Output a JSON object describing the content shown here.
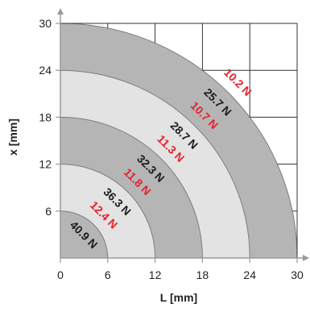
{
  "colors": {
    "dark_ring": "#b5b5b5",
    "light_ring": "#e3e3e3",
    "ring_border": "#7d7d7d",
    "grid": "#333333",
    "black_label": "#1a1a1a",
    "red_label": "#e8202a",
    "axis": "#9a9a9a"
  },
  "chart_data": {
    "type": "polar-region",
    "xlabel": "L [mm]",
    "ylabel": "x [mm]",
    "xlim": [
      0,
      30
    ],
    "ylim": [
      0,
      30
    ],
    "x_ticks": [
      "0",
      "6",
      "12",
      "18",
      "24",
      "30"
    ],
    "y_ticks": [
      "6",
      "12",
      "18",
      "24",
      "30"
    ],
    "grid": true,
    "rings": [
      {
        "inner_radius": 0,
        "outer_radius": 6,
        "shade": "dark",
        "black_value": "",
        "red_value": ""
      },
      {
        "inner_radius": 6,
        "outer_radius": 12,
        "shade": "light",
        "black_value": "40.9 N",
        "red_value": "12.4 N"
      },
      {
        "inner_radius": 12,
        "outer_radius": 18,
        "shade": "dark",
        "black_value": "36.3 N",
        "red_value": "11.8 N"
      },
      {
        "inner_radius": 18,
        "outer_radius": 24,
        "shade": "light",
        "black_value": "32.3 N",
        "red_value": "11.3 N"
      },
      {
        "inner_radius": 24,
        "outer_radius": 30,
        "shade": "dark",
        "black_value": "28.7 N",
        "red_value": "10.7 N"
      },
      {
        "inner_radius": 30,
        "outer_radius": 30,
        "shade": "none",
        "black_value": "25.7 N",
        "red_value": "10.2 N"
      }
    ]
  }
}
